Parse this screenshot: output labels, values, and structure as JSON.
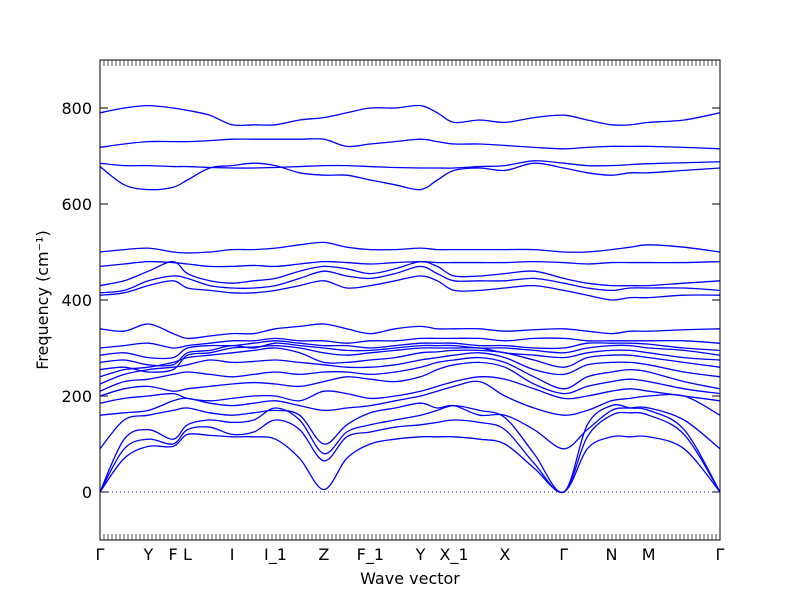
{
  "chart_data": {
    "type": "line",
    "title": "",
    "xlabel": "Wave vector",
    "ylabel": "Frequency (cm⁻¹)",
    "ylim": [
      -100,
      900
    ],
    "yticks": [
      0,
      200,
      400,
      600,
      800
    ],
    "grid": false,
    "legend": "none",
    "line_color": "#0000ff",
    "zero_line": {
      "y": 0,
      "style": "dotted",
      "color": "#0000ff"
    },
    "x_ticks": [
      {
        "label": "Γ",
        "pos": 0.0
      },
      {
        "label": "Y",
        "pos": 0.078
      },
      {
        "label": "F",
        "pos": 0.118
      },
      {
        "label": "L",
        "pos": 0.141
      },
      {
        "label": "I",
        "pos": 0.213
      },
      {
        "label": "I_1",
        "pos": 0.283
      },
      {
        "label": "Z",
        "pos": 0.361
      },
      {
        "label": "F_1",
        "pos": 0.436
      },
      {
        "label": "Y",
        "pos": 0.517
      },
      {
        "label": "X_1",
        "pos": 0.571
      },
      {
        "label": "X",
        "pos": 0.653
      },
      {
        "label": "Γ",
        "pos": 0.748
      },
      {
        "label": "N",
        "pos": 0.825
      },
      {
        "label": "M",
        "pos": 0.885
      },
      {
        "label": "Γ",
        "pos": 1.0
      }
    ],
    "x": [
      0,
      0.039,
      0.078,
      0.118,
      0.141,
      0.177,
      0.213,
      0.248,
      0.283,
      0.322,
      0.361,
      0.398,
      0.436,
      0.476,
      0.517,
      0.544,
      0.571,
      0.612,
      0.653,
      0.7,
      0.748,
      0.786,
      0.825,
      0.855,
      0.885,
      0.942,
      1.0
    ],
    "series": [
      {
        "values": [
          0,
          70,
          95,
          95,
          120,
          118,
          115,
          115,
          110,
          70,
          5,
          70,
          100,
          110,
          115,
          115,
          115,
          110,
          100,
          50,
          0,
          90,
          115,
          115,
          115,
          90,
          0
        ]
      },
      {
        "values": [
          0,
          90,
          110,
          100,
          130,
          135,
          120,
          125,
          150,
          130,
          65,
          115,
          125,
          135,
          140,
          145,
          150,
          145,
          130,
          60,
          0,
          115,
          160,
          165,
          160,
          120,
          0
        ]
      },
      {
        "values": [
          0,
          110,
          130,
          110,
          140,
          150,
          145,
          150,
          175,
          150,
          80,
          125,
          140,
          150,
          160,
          170,
          180,
          170,
          155,
          80,
          0,
          140,
          180,
          175,
          170,
          130,
          0
        ]
      },
      {
        "values": [
          90,
          150,
          160,
          170,
          175,
          165,
          160,
          165,
          170,
          160,
          100,
          140,
          165,
          175,
          185,
          175,
          180,
          160,
          160,
          130,
          90,
          130,
          170,
          175,
          175,
          150,
          90
        ]
      },
      {
        "values": [
          160,
          165,
          170,
          190,
          195,
          185,
          180,
          185,
          190,
          180,
          170,
          175,
          180,
          190,
          200,
          210,
          220,
          230,
          200,
          175,
          160,
          170,
          190,
          195,
          200,
          200,
          160
        ]
      },
      {
        "values": [
          185,
          195,
          200,
          205,
          195,
          190,
          195,
          200,
          200,
          190,
          210,
          205,
          195,
          200,
          210,
          220,
          230,
          240,
          235,
          215,
          195,
          200,
          210,
          215,
          210,
          200,
          190
        ]
      },
      {
        "values": [
          200,
          215,
          220,
          210,
          215,
          220,
          225,
          228,
          225,
          220,
          230,
          240,
          235,
          230,
          240,
          255,
          265,
          270,
          260,
          225,
          205,
          220,
          230,
          235,
          230,
          215,
          205
        ]
      },
      {
        "values": [
          210,
          230,
          235,
          245,
          250,
          245,
          240,
          245,
          250,
          245,
          250,
          250,
          245,
          250,
          260,
          270,
          275,
          280,
          270,
          240,
          215,
          240,
          250,
          255,
          250,
          230,
          215
        ]
      },
      {
        "values": [
          225,
          245,
          255,
          260,
          265,
          275,
          270,
          272,
          275,
          270,
          265,
          260,
          260,
          265,
          275,
          280,
          285,
          290,
          280,
          255,
          245,
          265,
          270,
          270,
          265,
          250,
          240
        ]
      },
      {
        "values": [
          240,
          255,
          260,
          270,
          280,
          285,
          290,
          295,
          300,
          290,
          270,
          270,
          275,
          280,
          290,
          292,
          295,
          295,
          290,
          275,
          260,
          280,
          285,
          285,
          280,
          270,
          260
        ]
      },
      {
        "values": [
          255,
          260,
          250,
          255,
          285,
          290,
          300,
          302,
          305,
          300,
          290,
          285,
          290,
          295,
          300,
          300,
          300,
          300,
          290,
          285,
          280,
          290,
          295,
          295,
          290,
          280,
          275
        ]
      },
      {
        "values": [
          270,
          275,
          265,
          265,
          290,
          295,
          305,
          300,
          310,
          305,
          300,
          295,
          295,
          300,
          305,
          305,
          305,
          300,
          300,
          295,
          290,
          300,
          305,
          305,
          300,
          295,
          285
        ]
      },
      {
        "values": [
          285,
          290,
          280,
          280,
          300,
          305,
          305,
          310,
          315,
          310,
          305,
          305,
          300,
          305,
          310,
          310,
          310,
          305,
          305,
          300,
          300,
          310,
          310,
          310,
          308,
          300,
          295
        ]
      },
      {
        "values": [
          300,
          305,
          310,
          300,
          305,
          310,
          315,
          315,
          320,
          315,
          315,
          310,
          315,
          315,
          320,
          320,
          320,
          320,
          315,
          320,
          320,
          315,
          315,
          315,
          315,
          315,
          310
        ]
      },
      {
        "values": [
          340,
          335,
          350,
          330,
          320,
          325,
          330,
          330,
          340,
          345,
          350,
          340,
          330,
          340,
          345,
          340,
          340,
          340,
          335,
          338,
          340,
          335,
          330,
          335,
          335,
          338,
          340
        ]
      },
      {
        "values": [
          410,
          415,
          430,
          440,
          425,
          420,
          415,
          415,
          420,
          430,
          440,
          425,
          430,
          440,
          450,
          440,
          420,
          420,
          425,
          430,
          420,
          410,
          400,
          405,
          405,
          410,
          410
        ]
      },
      {
        "values": [
          415,
          420,
          440,
          450,
          445,
          430,
          425,
          425,
          430,
          445,
          460,
          450,
          445,
          455,
          470,
          455,
          440,
          440,
          440,
          445,
          435,
          425,
          420,
          425,
          425,
          425,
          420
        ]
      },
      {
        "values": [
          430,
          440,
          460,
          480,
          455,
          440,
          435,
          440,
          445,
          460,
          470,
          465,
          455,
          465,
          480,
          470,
          450,
          450,
          455,
          460,
          445,
          435,
          430,
          430,
          430,
          435,
          440
        ]
      },
      {
        "values": [
          470,
          475,
          480,
          478,
          475,
          470,
          470,
          472,
          470,
          475,
          480,
          478,
          475,
          478,
          480,
          478,
          478,
          478,
          478,
          480,
          478,
          475,
          478,
          478,
          478,
          478,
          480
        ]
      },
      {
        "values": [
          500,
          505,
          508,
          500,
          498,
          500,
          505,
          505,
          508,
          515,
          520,
          510,
          505,
          505,
          508,
          505,
          505,
          505,
          505,
          505,
          500,
          500,
          505,
          510,
          515,
          510,
          500
        ]
      },
      {
        "values": [
          678,
          640,
          630,
          635,
          650,
          675,
          680,
          685,
          680,
          665,
          660,
          660,
          650,
          640,
          630,
          650,
          670,
          675,
          670,
          685,
          675,
          665,
          660,
          665,
          665,
          670,
          675
        ]
      },
      {
        "values": [
          685,
          680,
          680,
          678,
          678,
          676,
          675,
          675,
          676,
          678,
          680,
          680,
          678,
          676,
          675,
          675,
          675,
          678,
          680,
          690,
          685,
          680,
          680,
          682,
          684,
          686,
          688
        ]
      },
      {
        "values": [
          718,
          725,
          730,
          730,
          730,
          732,
          735,
          735,
          735,
          735,
          735,
          720,
          725,
          730,
          735,
          730,
          725,
          725,
          722,
          718,
          715,
          718,
          720,
          720,
          720,
          718,
          715
        ]
      },
      {
        "values": [
          790,
          800,
          805,
          800,
          795,
          785,
          765,
          765,
          765,
          775,
          780,
          790,
          800,
          800,
          805,
          790,
          770,
          775,
          770,
          780,
          785,
          775,
          765,
          765,
          770,
          775,
          790
        ]
      }
    ]
  }
}
